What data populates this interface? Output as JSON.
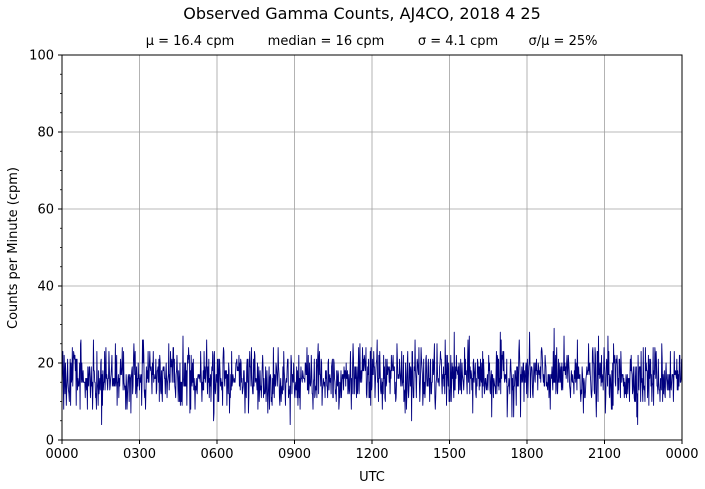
{
  "chart_data": {
    "type": "line",
    "title": "Observed Gamma Counts, AJ4CO, 2018 4 25",
    "stats": [
      {
        "label": "μ = 16.4 cpm"
      },
      {
        "label": "median = 16 cpm"
      },
      {
        "label": "σ = 4.1 cpm"
      },
      {
        "label": "σ/μ = 25%"
      }
    ],
    "xlabel": "UTC",
    "ylabel": "Counts per Minute (cpm)",
    "x_ticks": [
      "0000",
      "0300",
      "0600",
      "0900",
      "1200",
      "1500",
      "1800",
      "2100",
      "0000"
    ],
    "x_unit": "minutes since 0000 UTC",
    "xlim": [
      0,
      1440
    ],
    "ylim": [
      0,
      100
    ],
    "y_ticks": [
      0,
      20,
      40,
      60,
      80,
      100
    ],
    "grid": true,
    "series": [
      {
        "color": "#00007f",
        "sampling_interval_minutes": 1,
        "summary": {
          "mean": 16.4,
          "median": 16,
          "std": 4.1,
          "min": 4,
          "max": 31
        }
      }
    ]
  }
}
